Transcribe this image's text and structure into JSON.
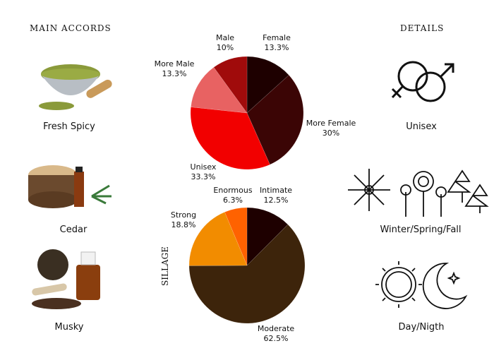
{
  "main_accords": {
    "title": "MAIN ACCORDS",
    "items": [
      {
        "label": "Fresh Spicy",
        "icon": "cardamom-bowl-image"
      },
      {
        "label": "Cedar",
        "icon": "cedar-wood-image"
      },
      {
        "label": "Musky",
        "icon": "musk-bottle-image"
      }
    ]
  },
  "details": {
    "title": "DETAILS",
    "items": [
      {
        "label": "Unisex",
        "icon": "gender-symbols-icon"
      },
      {
        "label": "Winter/Spring/Fall",
        "icon": "seasons-icon"
      },
      {
        "label": "Day/Nigth",
        "icon": "sun-moon-icon"
      }
    ]
  },
  "chart_data": [
    {
      "type": "pie",
      "title": "",
      "slices": [
        {
          "label": "Female",
          "value": 13.3,
          "display": "13.3%",
          "color": "#1e0000"
        },
        {
          "label": "More Female",
          "value": 30,
          "display": "30%",
          "color": "#3b0505"
        },
        {
          "label": "Unisex",
          "value": 33.3,
          "display": "33.3%",
          "color": "#f20000"
        },
        {
          "label": "More Male",
          "value": 13.3,
          "display": "13.3%",
          "color": "#e86262"
        },
        {
          "label": "Male",
          "value": 10,
          "display": "10%",
          "color": "#a00b0b"
        }
      ]
    },
    {
      "type": "pie",
      "title": "SILLAGE",
      "slices": [
        {
          "label": "Intimate",
          "value": 12.5,
          "display": "12.5%",
          "color": "#1e0000"
        },
        {
          "label": "Moderate",
          "value": 62.5,
          "display": "62.5%",
          "color": "#3d240b"
        },
        {
          "label": "Strong",
          "value": 18.8,
          "display": "18.8%",
          "color": "#f28c00"
        },
        {
          "label": "Enormous",
          "value": 6.3,
          "display": "6.3%",
          "color": "#ff6200"
        }
      ]
    }
  ]
}
